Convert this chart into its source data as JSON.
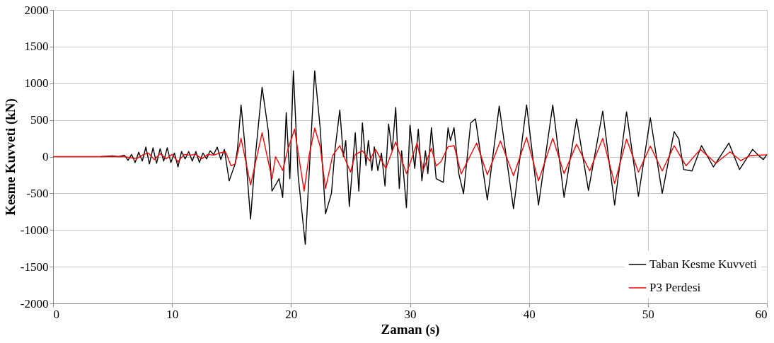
{
  "chart_data": {
    "type": "line",
    "xlabel": "Zaman (s)",
    "ylabel": "Kesme Kuvveti (kN)",
    "xlim": [
      0,
      60
    ],
    "xticks": [
      0,
      10,
      20,
      30,
      40,
      50,
      60
    ],
    "ylim": [
      -2000,
      2000
    ],
    "yticks": [
      -2000,
      -1500,
      -1000,
      -500,
      0,
      500,
      1000,
      1500,
      2000
    ],
    "grid": true,
    "legend": "bottom right",
    "marker": "none",
    "line_style": "solid",
    "series": [
      {
        "name": "Taban Kesme Kuvveti",
        "color": "#000000",
        "x": [
          4,
          5,
          5.5,
          6,
          6.3,
          6.6,
          6.9,
          7.2,
          7.5,
          7.8,
          8.1,
          8.4,
          8.7,
          9.0,
          9.3,
          9.6,
          9.9,
          10.2,
          10.5,
          10.8,
          11.1,
          11.4,
          11.7,
          12,
          12.3,
          12.6,
          12.9,
          13.2,
          13.5,
          13.8,
          14.1,
          14.4,
          14.8,
          15.3,
          15.5,
          15.8,
          16.1,
          16.6,
          17.0,
          17.57,
          18.1,
          18.4,
          19.0,
          19.3,
          19.6,
          19.9,
          20.2,
          20.6,
          21.2,
          21.6,
          21.99,
          22.45,
          22.9,
          23.4,
          23.7,
          24.1,
          24.4,
          24.6,
          24.9,
          25.4,
          25.7,
          26.0,
          26.3,
          26.5,
          26.8,
          27.0,
          27.3,
          27.6,
          27.9,
          28.2,
          28.5,
          28.8,
          29.1,
          29.3,
          29.7,
          30.0,
          30.4,
          30.7,
          31.0,
          31.3,
          31.5,
          31.8,
          32.2,
          32.8,
          33.2,
          33.4,
          33.7,
          34.1,
          34.5,
          35.1,
          35.5,
          36.5,
          37.5,
          38.7,
          39.8,
          40.8,
          42.0,
          42.95,
          44.0,
          45.0,
          46.2,
          47.2,
          48.2,
          49.2,
          50.2,
          51.2,
          52.2,
          52.6,
          53.0,
          53.7,
          54.5,
          55.5,
          56.8,
          57.7,
          58.8,
          59.3,
          59.7,
          60
        ],
        "values": [
          0,
          10,
          0,
          20,
          -50,
          30,
          -80,
          60,
          -60,
          130,
          -100,
          120,
          -90,
          110,
          -60,
          120,
          -80,
          50,
          -140,
          70,
          -30,
          70,
          -60,
          70,
          -80,
          50,
          -30,
          80,
          30,
          130,
          -40,
          100,
          -330,
          -100,
          100,
          705,
          200,
          -850,
          0,
          946,
          340,
          -470,
          -300,
          -556,
          600,
          -300,
          1170,
          -260,
          -1195,
          0,
          1170,
          390,
          -780,
          -500,
          100,
          635,
          0,
          220,
          -680,
          325,
          -470,
          460,
          -120,
          220,
          -190,
          135,
          -190,
          50,
          -400,
          445,
          80,
          670,
          -435,
          80,
          -695,
          430,
          -160,
          375,
          -330,
          80,
          -230,
          395,
          -300,
          -350,
          395,
          220,
          395,
          -230,
          -505,
          460,
          515,
          -590,
          690,
          -710,
          705,
          -660,
          705,
          -555,
          515,
          -460,
          620,
          -660,
          610,
          -540,
          530,
          -500,
          340,
          240,
          -175,
          -195,
          150,
          -140,
          185,
          -175,
          100,
          15,
          -40,
          30
        ]
      },
      {
        "name": "P3 Perdesi",
        "color": "#ff0000",
        "x": [
          0,
          6,
          7,
          7.5,
          8,
          8.5,
          9,
          9.5,
          10,
          10.5,
          11,
          11.5,
          12,
          12.5,
          13,
          13.5,
          14,
          14.5,
          14.96,
          15.3,
          15.8,
          16.6,
          17.57,
          18.4,
          18.7,
          19.3,
          19.7,
          20.3,
          21.1,
          21.5,
          22.0,
          22.45,
          22.9,
          23.5,
          24.1,
          24.6,
          25.0,
          25.4,
          26.0,
          26.6,
          27.1,
          27.97,
          28.8,
          29.7,
          30.6,
          31.1,
          31.8,
          32.2,
          32.6,
          33.2,
          33.7,
          34.3,
          35.6,
          36.5,
          37.6,
          38.7,
          39.8,
          40.8,
          42.0,
          42.95,
          44.0,
          45.1,
          46.2,
          47.2,
          48.2,
          49.2,
          50.2,
          51.2,
          52.2,
          53.2,
          54.4,
          55.7,
          56.9,
          57.8,
          58.6,
          60
        ],
        "values": [
          0,
          0,
          -30,
          20,
          50,
          -40,
          40,
          -30,
          30,
          -70,
          30,
          20,
          30,
          -30,
          30,
          20,
          50,
          65,
          -125,
          -100,
          250,
          -385,
          325,
          -300,
          0,
          -190,
          80,
          375,
          -470,
          0,
          390,
          135,
          -435,
          15,
          150,
          -55,
          -210,
          30,
          80,
          -55,
          100,
          -160,
          200,
          -230,
          185,
          -190,
          115,
          -125,
          -70,
          135,
          150,
          -235,
          185,
          -245,
          215,
          -260,
          260,
          -330,
          250,
          -230,
          170,
          -195,
          250,
          -365,
          240,
          -210,
          145,
          -195,
          150,
          -125,
          100,
          -90,
          65,
          -55,
          15,
          25
        ]
      }
    ]
  }
}
